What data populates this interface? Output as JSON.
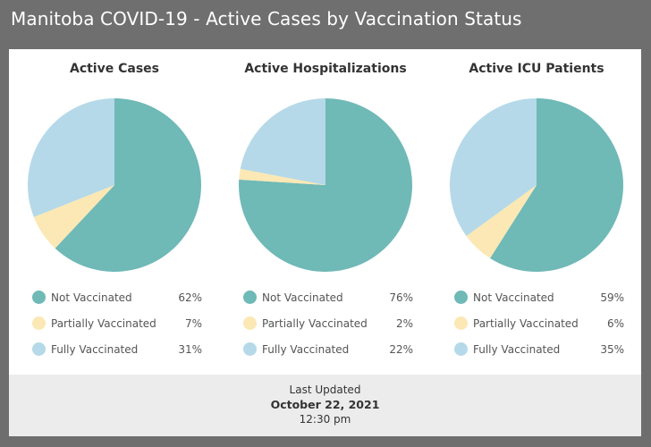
{
  "header": {
    "title": "Manitoba COVID-19 - Active Cases by Vaccination Status"
  },
  "colors": {
    "not_vaccinated": "#6fb9b7",
    "partially_vaccinated": "#fbe8b4",
    "fully_vaccinated": "#b5d9e8"
  },
  "chart_data": [
    {
      "type": "pie",
      "title": "Active Cases",
      "categories": [
        "Not Vaccinated",
        "Partially Vaccinated",
        "Fully Vaccinated"
      ],
      "values": [
        62,
        7,
        31
      ],
      "labels": [
        "62%",
        "7%",
        "31%"
      ]
    },
    {
      "type": "pie",
      "title": "Active Hospitalizations",
      "categories": [
        "Not Vaccinated",
        "Partially Vaccinated",
        "Fully Vaccinated"
      ],
      "values": [
        76,
        2,
        22
      ],
      "labels": [
        "76%",
        "2%",
        "22%"
      ]
    },
    {
      "type": "pie",
      "title": "Active ICU Patients",
      "categories": [
        "Not Vaccinated",
        "Partially Vaccinated",
        "Fully Vaccinated"
      ],
      "values": [
        59,
        6,
        35
      ],
      "labels": [
        "59%",
        "6%",
        "35%"
      ]
    }
  ],
  "footer": {
    "label": "Last Updated",
    "date": "October 22, 2021",
    "time": "12:30 pm"
  }
}
